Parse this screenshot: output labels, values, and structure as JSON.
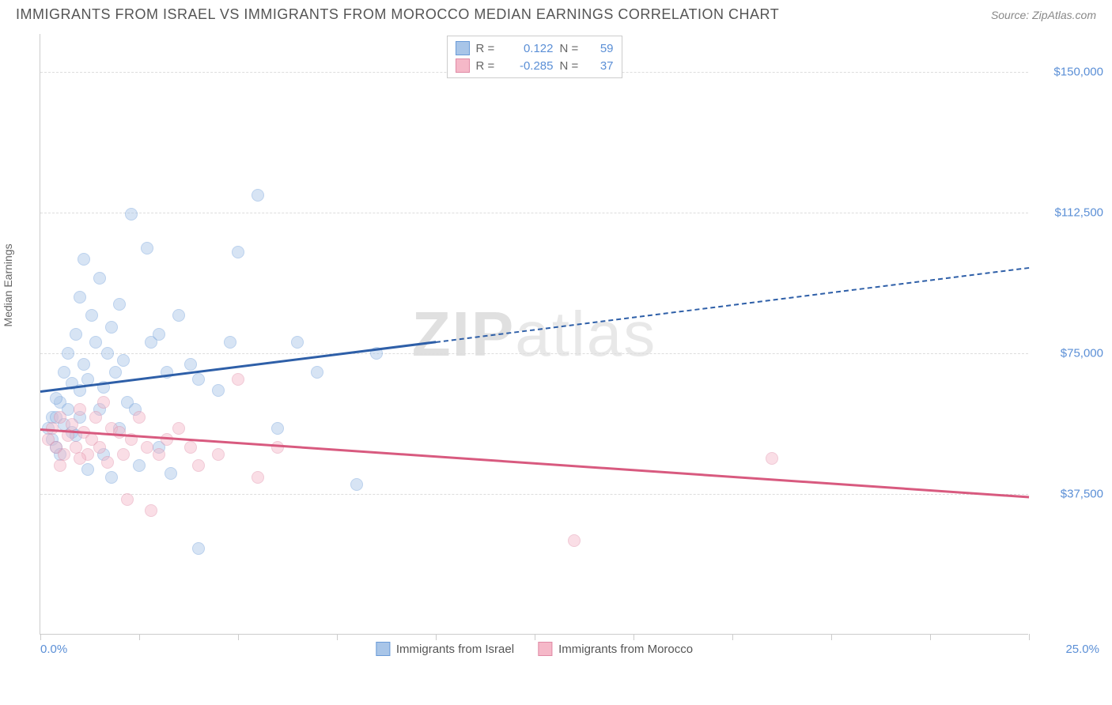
{
  "header": {
    "title": "IMMIGRANTS FROM ISRAEL VS IMMIGRANTS FROM MOROCCO MEDIAN EARNINGS CORRELATION CHART",
    "source": "Source: ZipAtlas.com"
  },
  "chart": {
    "type": "scatter",
    "ylabel": "Median Earnings",
    "watermark_prefix": "ZIP",
    "watermark_suffix": "atlas",
    "xlim": [
      0,
      25
    ],
    "ylim": [
      0,
      160000
    ],
    "x_ticks": [
      0,
      2.5,
      5,
      7.5,
      10,
      12.5,
      15,
      17.5,
      20,
      22.5,
      25
    ],
    "x_tick_labels_shown": {
      "0": "0.0%",
      "25": "25.0%"
    },
    "y_gridlines": [
      37500,
      75000,
      112500,
      150000
    ],
    "y_tick_labels": [
      "$37,500",
      "$75,000",
      "$112,500",
      "$150,000"
    ],
    "background_color": "#ffffff",
    "grid_color": "#dddddd",
    "axis_color": "#cccccc",
    "tick_label_color": "#5b8fd6",
    "point_radius": 8,
    "point_opacity": 0.45,
    "series": [
      {
        "name": "Immigrants from Israel",
        "color_fill": "#a8c5e8",
        "color_stroke": "#6a9bd8",
        "trend_color": "#2e5fa8",
        "r_value": "0.122",
        "n_value": "59",
        "trend": {
          "x1": 0,
          "y1": 65000,
          "x2": 25,
          "y2": 98000,
          "solid_until_x": 10
        },
        "points": [
          [
            0.2,
            55000
          ],
          [
            0.3,
            58000
          ],
          [
            0.3,
            52000
          ],
          [
            0.4,
            58000
          ],
          [
            0.4,
            50000
          ],
          [
            0.5,
            62000
          ],
          [
            0.5,
            48000
          ],
          [
            0.6,
            70000
          ],
          [
            0.6,
            56000
          ],
          [
            0.7,
            75000
          ],
          [
            0.7,
            60000
          ],
          [
            0.8,
            67000
          ],
          [
            0.8,
            54000
          ],
          [
            0.9,
            80000
          ],
          [
            1.0,
            90000
          ],
          [
            1.0,
            65000
          ],
          [
            1.1,
            100000
          ],
          [
            1.1,
            72000
          ],
          [
            1.2,
            68000
          ],
          [
            1.3,
            85000
          ],
          [
            1.4,
            78000
          ],
          [
            1.5,
            95000
          ],
          [
            1.5,
            60000
          ],
          [
            1.6,
            48000
          ],
          [
            1.7,
            75000
          ],
          [
            1.8,
            82000
          ],
          [
            1.9,
            70000
          ],
          [
            2.0,
            88000
          ],
          [
            2.0,
            55000
          ],
          [
            2.2,
            62000
          ],
          [
            2.3,
            112000
          ],
          [
            2.4,
            60000
          ],
          [
            2.5,
            45000
          ],
          [
            2.7,
            103000
          ],
          [
            2.8,
            78000
          ],
          [
            3.0,
            80000
          ],
          [
            3.0,
            50000
          ],
          [
            3.2,
            70000
          ],
          [
            3.3,
            43000
          ],
          [
            3.5,
            85000
          ],
          [
            3.8,
            72000
          ],
          [
            4.0,
            68000
          ],
          [
            4.0,
            23000
          ],
          [
            4.5,
            65000
          ],
          [
            4.8,
            78000
          ],
          [
            5.0,
            102000
          ],
          [
            5.5,
            117000
          ],
          [
            6.0,
            55000
          ],
          [
            6.5,
            78000
          ],
          [
            7.0,
            70000
          ],
          [
            8.0,
            40000
          ],
          [
            8.5,
            75000
          ],
          [
            1.2,
            44000
          ],
          [
            1.8,
            42000
          ],
          [
            0.4,
            63000
          ],
          [
            1.0,
            58000
          ],
          [
            2.1,
            73000
          ],
          [
            1.6,
            66000
          ],
          [
            0.9,
            53000
          ]
        ]
      },
      {
        "name": "Immigrants from Morocco",
        "color_fill": "#f5b8c8",
        "color_stroke": "#e08aa5",
        "trend_color": "#d85a7f",
        "r_value": "-0.285",
        "n_value": "37",
        "trend": {
          "x1": 0,
          "y1": 55000,
          "x2": 25,
          "y2": 37000,
          "solid_until_x": 25
        },
        "points": [
          [
            0.2,
            52000
          ],
          [
            0.3,
            55000
          ],
          [
            0.4,
            50000
          ],
          [
            0.5,
            58000
          ],
          [
            0.6,
            48000
          ],
          [
            0.7,
            53000
          ],
          [
            0.8,
            56000
          ],
          [
            0.9,
            50000
          ],
          [
            1.0,
            60000
          ],
          [
            1.1,
            54000
          ],
          [
            1.2,
            48000
          ],
          [
            1.3,
            52000
          ],
          [
            1.4,
            58000
          ],
          [
            1.5,
            50000
          ],
          [
            1.6,
            62000
          ],
          [
            1.7,
            46000
          ],
          [
            1.8,
            55000
          ],
          [
            2.0,
            54000
          ],
          [
            2.1,
            48000
          ],
          [
            2.2,
            36000
          ],
          [
            2.3,
            52000
          ],
          [
            2.5,
            58000
          ],
          [
            2.7,
            50000
          ],
          [
            2.8,
            33000
          ],
          [
            3.0,
            48000
          ],
          [
            3.2,
            52000
          ],
          [
            3.5,
            55000
          ],
          [
            3.8,
            50000
          ],
          [
            4.0,
            45000
          ],
          [
            4.5,
            48000
          ],
          [
            5.0,
            68000
          ],
          [
            5.5,
            42000
          ],
          [
            6.0,
            50000
          ],
          [
            13.5,
            25000
          ],
          [
            18.5,
            47000
          ],
          [
            0.5,
            45000
          ],
          [
            1.0,
            47000
          ]
        ]
      }
    ],
    "legend_top": {
      "r_label": "R =",
      "n_label": "N ="
    },
    "legend_bottom_labels": [
      "Immigrants from Israel",
      "Immigrants from Morocco"
    ]
  }
}
